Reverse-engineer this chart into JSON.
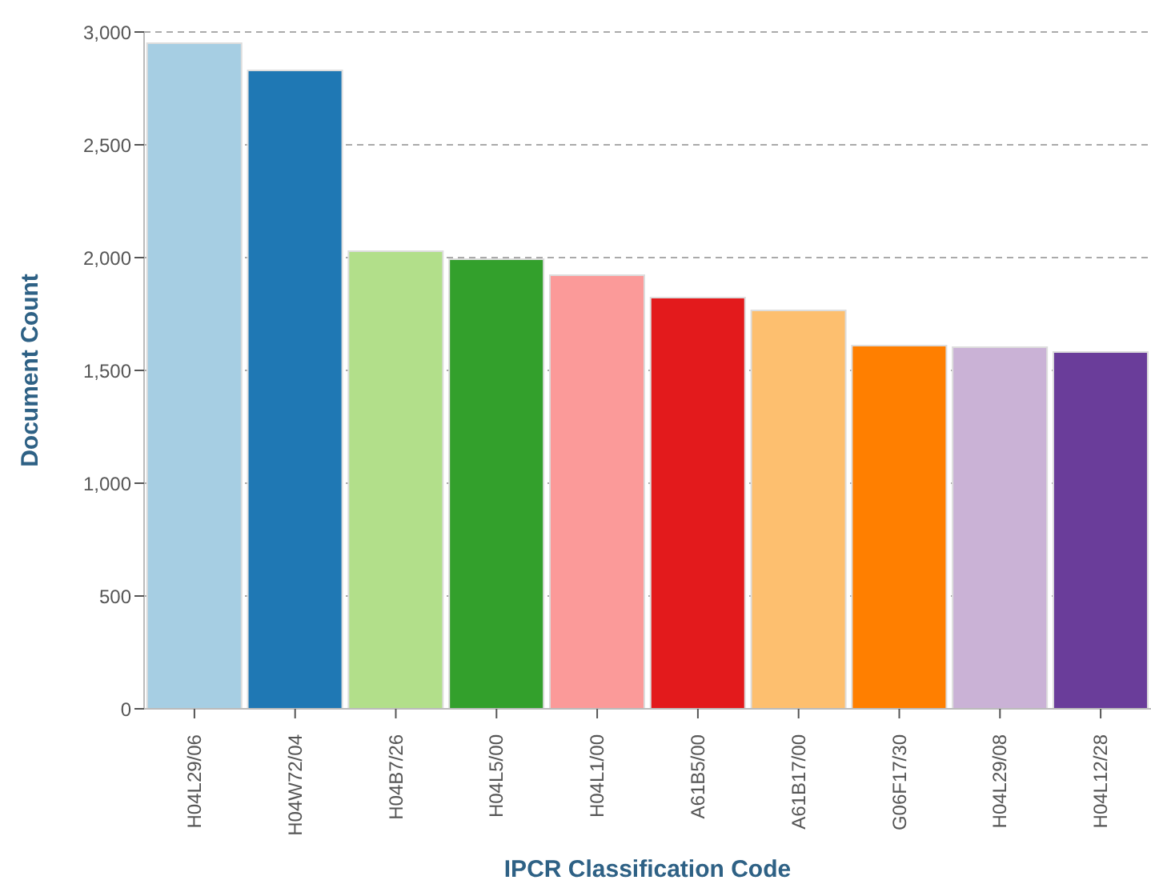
{
  "chart_data": {
    "type": "bar",
    "xlabel": "IPCR Classification Code",
    "ylabel": "Document Count",
    "categories": [
      "H04L29/06",
      "H04W72/04",
      "H04B7/26",
      "H04L5/00",
      "H04L1/00",
      "A61B5/00",
      "A61B17/00",
      "G06F17/30",
      "H04L29/08",
      "H04L12/28"
    ],
    "values": [
      2950,
      2830,
      2028,
      1993,
      1922,
      1823,
      1766,
      1610,
      1603,
      1582
    ],
    "colors": [
      "#a6cee3",
      "#1f78b4",
      "#b2df8a",
      "#33a02c",
      "#fb9a99",
      "#e31a1c",
      "#fdbf6f",
      "#ff7f00",
      "#cab2d6",
      "#6a3d9a"
    ],
    "ylim": [
      0,
      3000
    ],
    "yticks": [
      {
        "value": 0,
        "label": "0"
      },
      {
        "value": 500,
        "label": "500"
      },
      {
        "value": 1000,
        "label": "1,000"
      },
      {
        "value": 1500,
        "label": "1,500"
      },
      {
        "value": 2000,
        "label": "2,000"
      },
      {
        "value": 2500,
        "label": "2,500"
      },
      {
        "value": 3000,
        "label": "3,000"
      }
    ],
    "grid": "y"
  }
}
